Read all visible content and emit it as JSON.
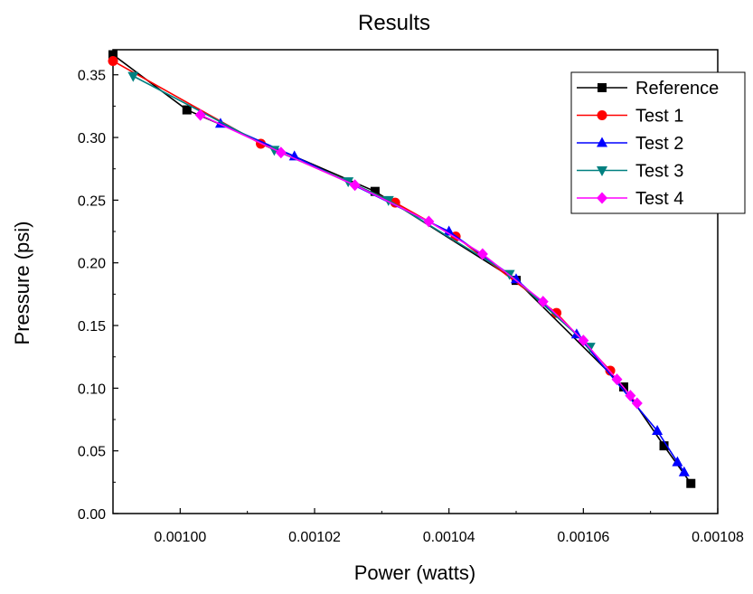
{
  "chart_data": {
    "type": "line",
    "title": "Results",
    "xlabel": "Power (watts)",
    "ylabel": "Pressure (psi)",
    "xlim": [
      0.00099,
      0.00108
    ],
    "ylim": [
      0.0,
      0.37
    ],
    "x_ticks": [
      "0.00100",
      "0.00102",
      "0.00104",
      "0.00106",
      "0.00108"
    ],
    "x_tick_values": [
      0.001,
      0.00102,
      0.00104,
      0.00106,
      0.00108
    ],
    "y_ticks": [
      "0.00",
      "0.05",
      "0.10",
      "0.15",
      "0.20",
      "0.25",
      "0.30",
      "0.35"
    ],
    "y_tick_values": [
      0.0,
      0.05,
      0.1,
      0.15,
      0.2,
      0.25,
      0.3,
      0.35
    ],
    "grid": false,
    "legend_position": "top-right",
    "series": [
      {
        "name": "Reference",
        "color": "#000000",
        "marker": "square",
        "points": [
          [
            0.00099,
            0.366
          ],
          [
            0.001001,
            0.322
          ],
          [
            0.001029,
            0.257
          ],
          [
            0.00105,
            0.186
          ],
          [
            0.001066,
            0.101
          ],
          [
            0.001072,
            0.054
          ],
          [
            0.001076,
            0.024
          ]
        ]
      },
      {
        "name": "Test 1",
        "color": "#ff0000",
        "marker": "circle",
        "points": [
          [
            0.00099,
            0.361
          ],
          [
            0.001012,
            0.295
          ],
          [
            0.001032,
            0.248
          ],
          [
            0.001041,
            0.221
          ],
          [
            0.001056,
            0.16
          ],
          [
            0.001064,
            0.114
          ]
        ]
      },
      {
        "name": "Test 2",
        "color": "#0000ff",
        "marker": "triangle-up",
        "points": [
          [
            0.001006,
            0.311
          ],
          [
            0.001017,
            0.285
          ],
          [
            0.00104,
            0.225
          ],
          [
            0.00105,
            0.187
          ],
          [
            0.001059,
            0.143
          ],
          [
            0.001071,
            0.066
          ],
          [
            0.001074,
            0.041
          ],
          [
            0.001075,
            0.033
          ]
        ]
      },
      {
        "name": "Test 3",
        "color": "#008080",
        "marker": "triangle-down",
        "points": [
          [
            0.000993,
            0.349
          ],
          [
            0.001014,
            0.29
          ],
          [
            0.001025,
            0.265
          ],
          [
            0.001031,
            0.25
          ],
          [
            0.001049,
            0.191
          ],
          [
            0.001061,
            0.133
          ]
        ]
      },
      {
        "name": "Test 4",
        "color": "#ff00ff",
        "marker": "diamond",
        "points": [
          [
            0.001003,
            0.318
          ],
          [
            0.001015,
            0.288
          ],
          [
            0.001026,
            0.262
          ],
          [
            0.001037,
            0.233
          ],
          [
            0.001045,
            0.207
          ],
          [
            0.001054,
            0.169
          ],
          [
            0.00106,
            0.138
          ],
          [
            0.001065,
            0.107
          ],
          [
            0.001067,
            0.094
          ],
          [
            0.001068,
            0.088
          ]
        ]
      }
    ]
  }
}
